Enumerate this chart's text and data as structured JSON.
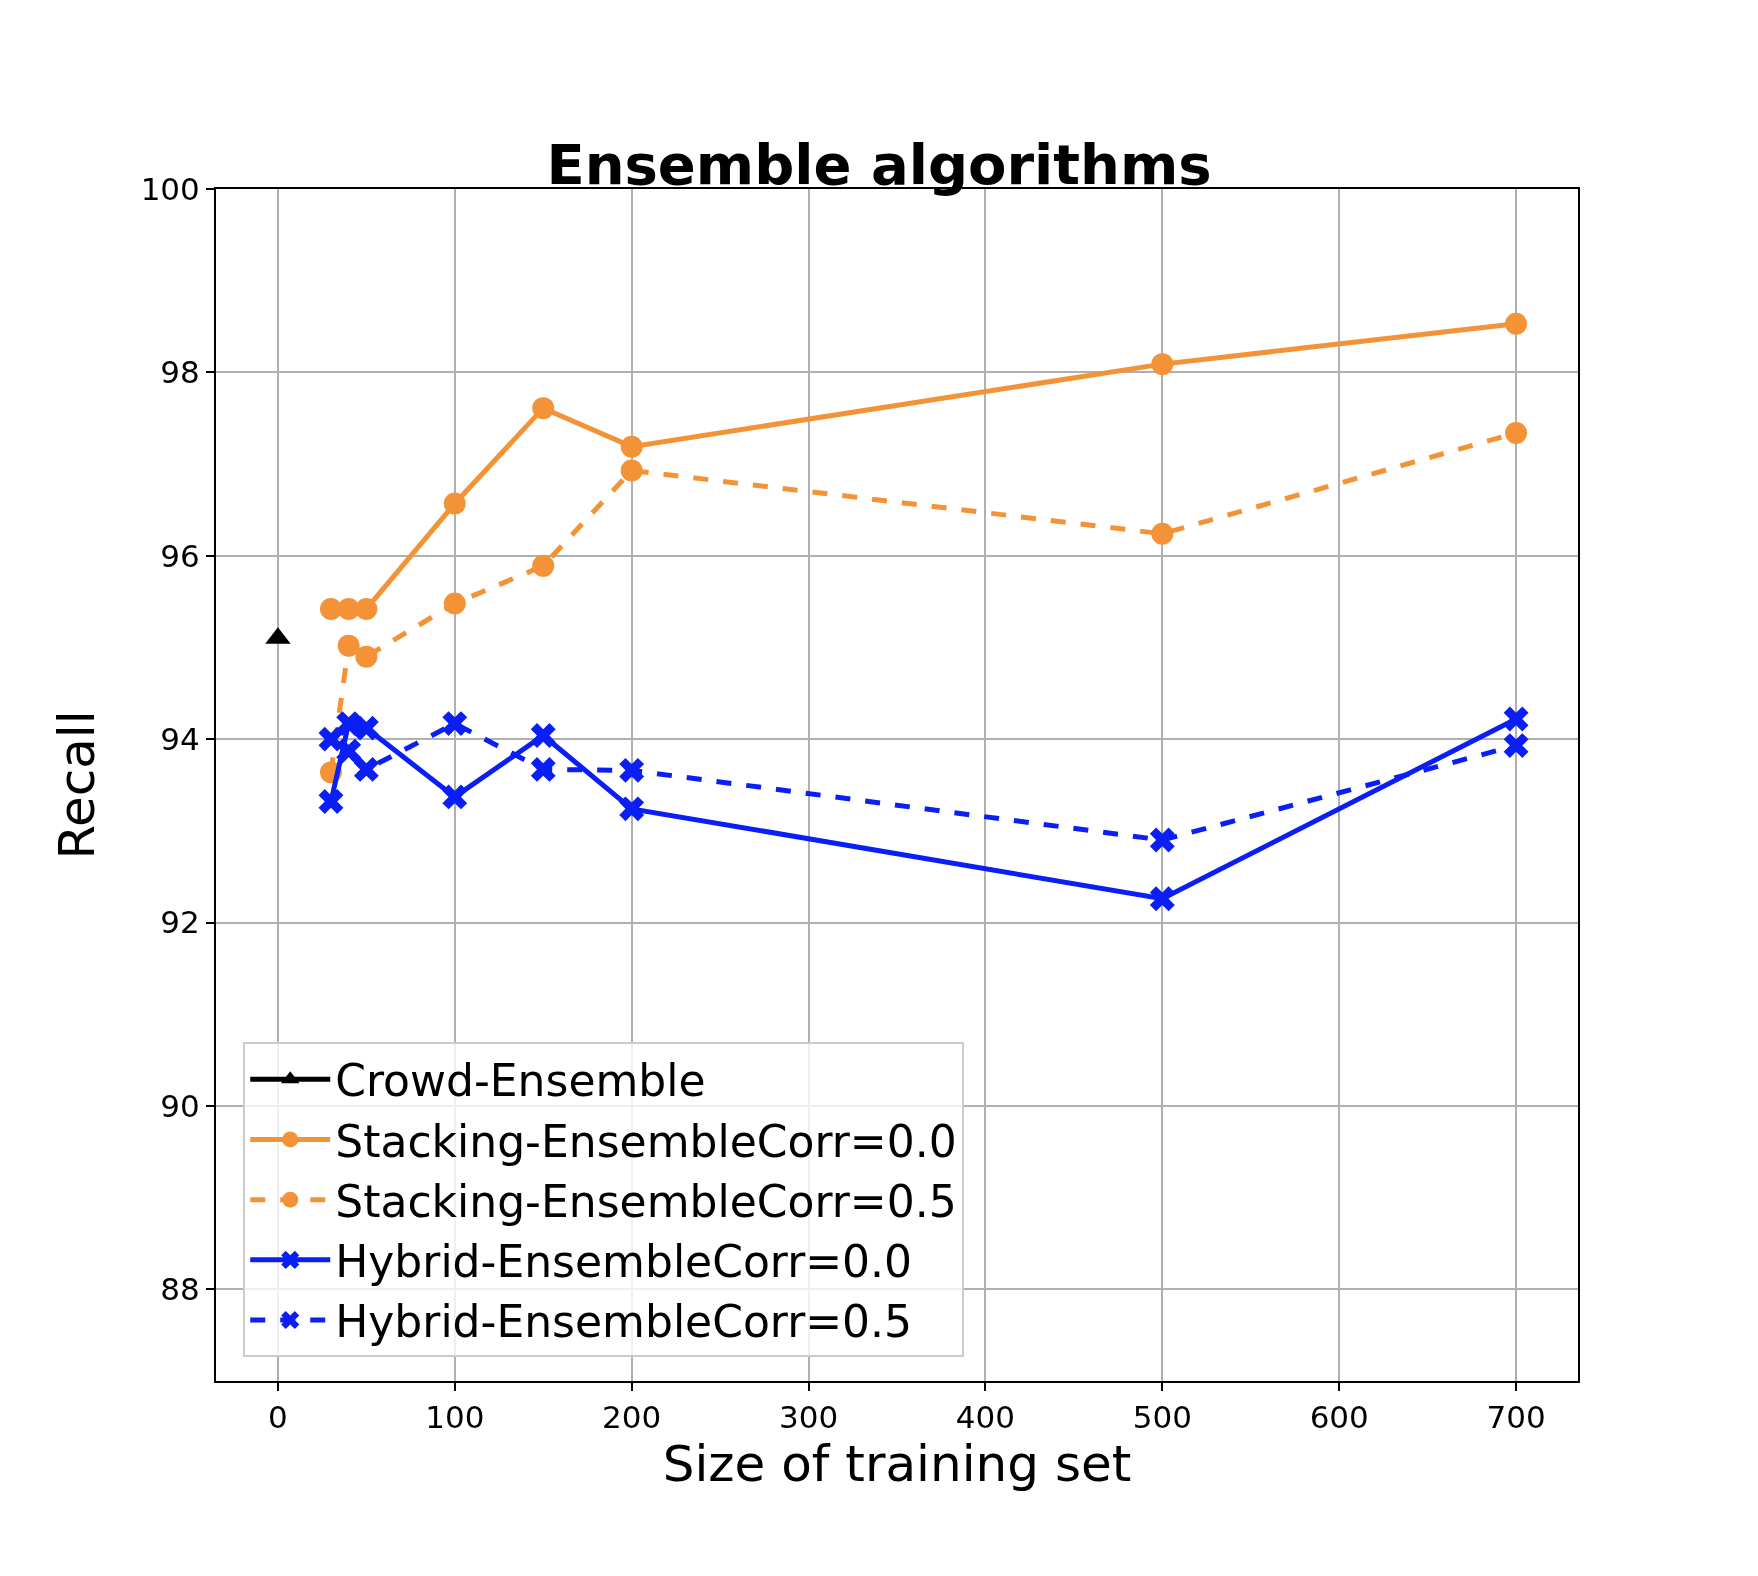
{
  "chart_data": {
    "type": "line",
    "title": "Ensemble algorithms",
    "xlabel": "Size of training set",
    "ylabel": "Recall",
    "xlim": [
      -35,
      735
    ],
    "xticks": [
      0,
      100,
      200,
      300,
      400,
      500,
      600,
      700
    ],
    "ylim": [
      87,
      100
    ],
    "yticks": [
      88,
      90,
      92,
      94,
      96,
      98,
      100
    ],
    "grid": true,
    "legend": "bottom left",
    "series": [
      {
        "name": "Crowd-Ensemble",
        "color": "#000000",
        "x": [
          0
        ],
        "values": [
          95.1
        ],
        "marker": "triangle",
        "line_style": "solid"
      },
      {
        "name": "Stacking-EnsembleCorr=0.0",
        "color": "#f39237",
        "x": [
          30,
          40,
          50,
          100,
          150,
          200,
          500,
          700
        ],
        "values": [
          95.42,
          95.42,
          95.42,
          96.57,
          97.61,
          97.19,
          98.09,
          98.53
        ],
        "marker": "circle",
        "line_style": "solid"
      },
      {
        "name": "Stacking-EnsembleCorr=0.5",
        "color": "#f39237",
        "x": [
          30,
          40,
          50,
          100,
          150,
          200,
          500,
          700
        ],
        "values": [
          93.64,
          95.02,
          94.9,
          95.48,
          95.89,
          96.93,
          96.24,
          97.34
        ],
        "marker": "circle",
        "line_style": "dashed"
      },
      {
        "name": "Hybrid-EnsembleCorr=0.0",
        "color": "#0a1ef5",
        "x": [
          30,
          40,
          50,
          100,
          150,
          200,
          500,
          700
        ],
        "values": [
          93.32,
          94.17,
          94.12,
          93.37,
          94.04,
          93.24,
          92.26,
          94.22
        ],
        "marker": "cross",
        "line_style": "solid"
      },
      {
        "name": "Hybrid-EnsembleCorr=0.5",
        "color": "#0a1ef5",
        "x": [
          30,
          40,
          50,
          100,
          150,
          200,
          500,
          700
        ],
        "values": [
          94.0,
          93.87,
          93.67,
          94.17,
          93.67,
          93.66,
          92.9,
          93.93
        ],
        "marker": "cross",
        "line_style": "dashed"
      }
    ]
  }
}
